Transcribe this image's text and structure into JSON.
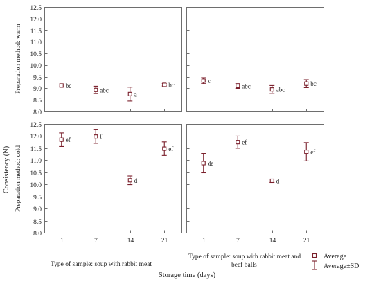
{
  "chart_data": {
    "type": "scatter",
    "title": "",
    "ylabel": "Consistency (N)",
    "xlabel": "Storage time (days)",
    "categories": [
      "1",
      "7",
      "14",
      "21"
    ],
    "ylim": [
      8.0,
      12.5
    ],
    "yticks": [
      "8.0",
      "8.5",
      "9.0",
      "9.5",
      "10.0",
      "10.5",
      "11.0",
      "11.5",
      "12.0",
      "12.5"
    ],
    "grid": false,
    "legend_position": "bottom-right",
    "legend": {
      "average": "Average",
      "sd": "Average±SD"
    },
    "columns": [
      "Type of sample: soup with rabbit meat",
      "Type of sample: soup with rabbit meat and beef balls"
    ],
    "rows": [
      "Preparation method: warm",
      "Preparation method: cold"
    ],
    "panels": [
      {
        "row": "Preparation method: warm",
        "column": "Type of sample: soup with rabbit meat",
        "points": [
          {
            "x": "1",
            "mean": 9.12,
            "sd": 0.06,
            "label": "bc"
          },
          {
            "x": "7",
            "mean": 8.93,
            "sd": 0.16,
            "label": "abc"
          },
          {
            "x": "14",
            "mean": 8.75,
            "sd": 0.3,
            "label": "a"
          },
          {
            "x": "21",
            "mean": 9.15,
            "sd": 0.05,
            "label": "bc"
          }
        ]
      },
      {
        "row": "Preparation method: warm",
        "column": "Type of sample: soup with rabbit meat and beef balls",
        "points": [
          {
            "x": "1",
            "mean": 9.33,
            "sd": 0.13,
            "label": "c"
          },
          {
            "x": "7",
            "mean": 9.1,
            "sd": 0.1,
            "label": "abc"
          },
          {
            "x": "14",
            "mean": 8.95,
            "sd": 0.17,
            "label": "abc"
          },
          {
            "x": "21",
            "mean": 9.2,
            "sd": 0.17,
            "label": "bc"
          }
        ]
      },
      {
        "row": "Preparation method: cold",
        "column": "Type of sample: soup with rabbit meat",
        "points": [
          {
            "x": "1",
            "mean": 11.85,
            "sd": 0.28,
            "label": "ef"
          },
          {
            "x": "7",
            "mean": 11.98,
            "sd": 0.28,
            "label": "f"
          },
          {
            "x": "14",
            "mean": 10.17,
            "sd": 0.18,
            "label": "d"
          },
          {
            "x": "21",
            "mean": 11.48,
            "sd": 0.28,
            "label": "ef"
          }
        ]
      },
      {
        "row": "Preparation method: cold",
        "column": "Type of sample: soup with rabbit meat and beef balls",
        "points": [
          {
            "x": "1",
            "mean": 10.88,
            "sd": 0.4,
            "label": "de"
          },
          {
            "x": "7",
            "mean": 11.75,
            "sd": 0.25,
            "label": "ef"
          },
          {
            "x": "14",
            "mean": 10.15,
            "sd": 0.07,
            "label": "d"
          },
          {
            "x": "21",
            "mean": 11.35,
            "sd": 0.38,
            "label": "ef"
          }
        ]
      }
    ],
    "colors": {
      "marker": "#7a1f2b",
      "axis": "#6e6e6e",
      "text": "#222222"
    }
  }
}
